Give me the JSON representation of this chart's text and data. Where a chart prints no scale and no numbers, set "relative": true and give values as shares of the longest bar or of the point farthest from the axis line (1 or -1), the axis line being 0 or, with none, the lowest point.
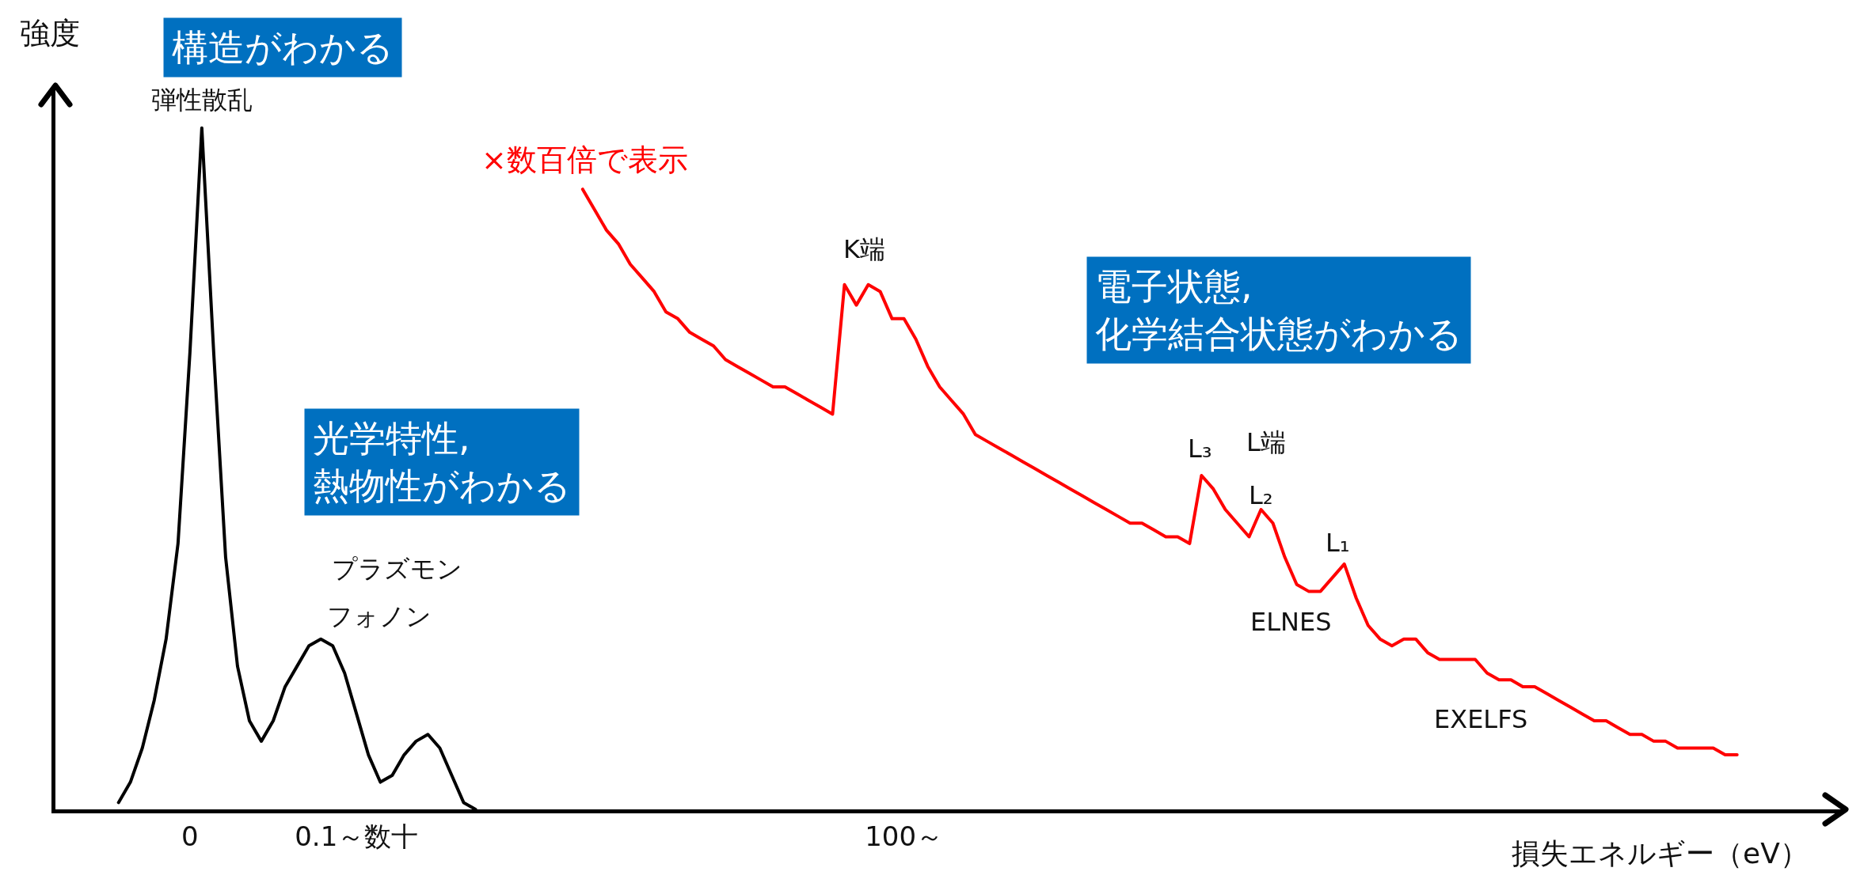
{
  "chart_data": {
    "type": "line",
    "relative": true,
    "ylabel": "強度",
    "xlabel": "損失エネルギー（eV）",
    "categories": [
      null,
      null,
      null,
      null,
      null,
      null,
      "0",
      null,
      null,
      null,
      null,
      null,
      null,
      null,
      null,
      null,
      null,
      null,
      null,
      null,
      "0.1～数十",
      null,
      null,
      null,
      null,
      null,
      null,
      null,
      null,
      null,
      null,
      null,
      null,
      null,
      null,
      null,
      null,
      null,
      null,
      null,
      null,
      null,
      null,
      null,
      null,
      null,
      null,
      null,
      null,
      null,
      null,
      null,
      null,
      null,
      null,
      null,
      null,
      null,
      null,
      null,
      null,
      null,
      null,
      null,
      null,
      null,
      "100～",
      null,
      null,
      null,
      null,
      null,
      null,
      null,
      null,
      null,
      null,
      null,
      null,
      null,
      null,
      null,
      null,
      null,
      null,
      null,
      null,
      null,
      null,
      null,
      null,
      null,
      null,
      null,
      null,
      null,
      null,
      null,
      null,
      null,
      null,
      null,
      null,
      null,
      null,
      null,
      null,
      null,
      null,
      null,
      null,
      null,
      null,
      null,
      null,
      null,
      null,
      null,
      null,
      null,
      null,
      null,
      null,
      null,
      null,
      null,
      null,
      null,
      null,
      null,
      null,
      null,
      null,
      null,
      null,
      null,
      null
    ],
    "series": [
      {
        "color": "#000000",
        "values": [
          0.01,
          0.04,
          0.09,
          0.16,
          0.25,
          0.39,
          0.67,
          1.0,
          0.67,
          0.37,
          0.21,
          0.13,
          0.1,
          0.13,
          0.18,
          0.21,
          0.24,
          0.25,
          0.24,
          0.2,
          0.14,
          0.08,
          0.04,
          0.05,
          0.08,
          0.1,
          0.11,
          0.09,
          0.05,
          0.01,
          0,
          null,
          null,
          null,
          null,
          null,
          null,
          null,
          null,
          null,
          null,
          null,
          null,
          null,
          null,
          null,
          null,
          null,
          null,
          null,
          null,
          null,
          null,
          null,
          null,
          null,
          null,
          null,
          null,
          null,
          null,
          null,
          null,
          null,
          null,
          null,
          null,
          null,
          null,
          null,
          null,
          null,
          null,
          null,
          null,
          null,
          null,
          null,
          null,
          null,
          null,
          null,
          null,
          null,
          null,
          null,
          null,
          null,
          null,
          null,
          null,
          null,
          null,
          null,
          null,
          null,
          null,
          null,
          null,
          null,
          null,
          null,
          null,
          null,
          null,
          null,
          null,
          null,
          null,
          null,
          null,
          null,
          null,
          null,
          null,
          null,
          null,
          null,
          null,
          null,
          null,
          null,
          null,
          null,
          null,
          null,
          null,
          null,
          null,
          null,
          null,
          null,
          null,
          null,
          null,
          null,
          null
        ]
      },
      {
        "color": "#ff0000",
        "values": [
          null,
          null,
          null,
          null,
          null,
          null,
          null,
          null,
          null,
          null,
          null,
          null,
          null,
          null,
          null,
          null,
          null,
          null,
          null,
          null,
          null,
          null,
          null,
          null,
          null,
          null,
          null,
          null,
          null,
          null,
          null,
          null,
          null,
          null,
          null,
          null,
          null,
          null,
          null,
          0.91,
          0.88,
          0.85,
          0.83,
          0.8,
          0.78,
          0.76,
          0.73,
          0.72,
          0.7,
          0.69,
          0.68,
          0.66,
          0.65,
          0.64,
          0.63,
          0.62,
          0.62,
          0.61,
          0.6,
          0.59,
          0.58,
          0.77,
          0.74,
          0.77,
          0.76,
          0.72,
          0.72,
          0.69,
          0.65,
          0.62,
          0.6,
          0.58,
          0.55,
          0.54,
          0.53,
          0.52,
          0.51,
          0.5,
          0.49,
          0.48,
          0.47,
          0.46,
          0.45,
          0.44,
          0.43,
          0.42,
          0.42,
          0.41,
          0.4,
          0.4,
          0.39,
          0.49,
          0.47,
          0.44,
          0.42,
          0.4,
          0.44,
          0.42,
          0.37,
          0.33,
          0.32,
          0.32,
          0.34,
          0.36,
          0.31,
          0.27,
          0.25,
          0.24,
          0.25,
          0.25,
          0.23,
          0.22,
          0.22,
          0.22,
          0.22,
          0.2,
          0.19,
          0.19,
          0.18,
          0.18,
          0.17,
          0.16,
          0.15,
          0.14,
          0.13,
          0.13,
          0.12,
          0.11,
          0.11,
          0.1,
          0.1,
          0.09,
          0.09,
          0.09,
          0.09,
          0.08,
          0.08
        ]
      }
    ],
    "annotations": [
      "構造がわかる",
      "弾性散乱",
      "×数百倍で表示",
      "K端",
      "電子状態,\n化学結合状態がわかる",
      "光学特性,\n熱物性がわかる",
      "L₃",
      "L端",
      "L₂",
      "L₁",
      "ELNES",
      "プラズモン",
      "フォノン",
      "EXELFS"
    ]
  }
}
